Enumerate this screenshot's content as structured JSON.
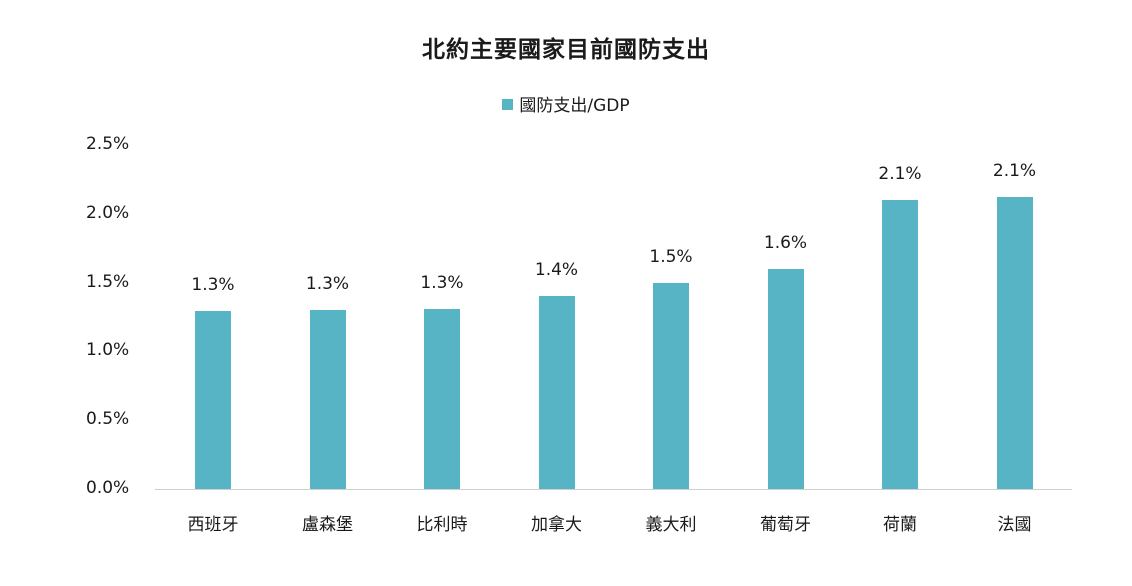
{
  "chart_data": {
    "type": "bar",
    "title": "北約主要國家目前國防支出",
    "legend": [
      "國防支出/GDP"
    ],
    "legend_position": "top",
    "categories": [
      "西班牙",
      "盧森堡",
      "比利時",
      "加拿大",
      "義大利",
      "葡萄牙",
      "荷蘭",
      "法國"
    ],
    "series": [
      {
        "name": "國防支出/GDP",
        "values": [
          1.29,
          1.3,
          1.31,
          1.4,
          1.5,
          1.6,
          2.1,
          2.12
        ],
        "data_labels": [
          "1.3%",
          "1.3%",
          "1.3%",
          "1.4%",
          "1.5%",
          "1.6%",
          "2.1%",
          "2.1%"
        ],
        "color": "#56b4c5"
      }
    ],
    "xlabel": "",
    "ylabel": "",
    "ylim": [
      0,
      2.5
    ],
    "yticks": [
      "0.0%",
      "0.5%",
      "1.0%",
      "1.5%",
      "2.0%",
      "2.5%"
    ],
    "grid": false
  },
  "colors": {
    "bar": "#56b4c5",
    "axis": "#d0d0d0",
    "text": "#1a1a1a"
  }
}
